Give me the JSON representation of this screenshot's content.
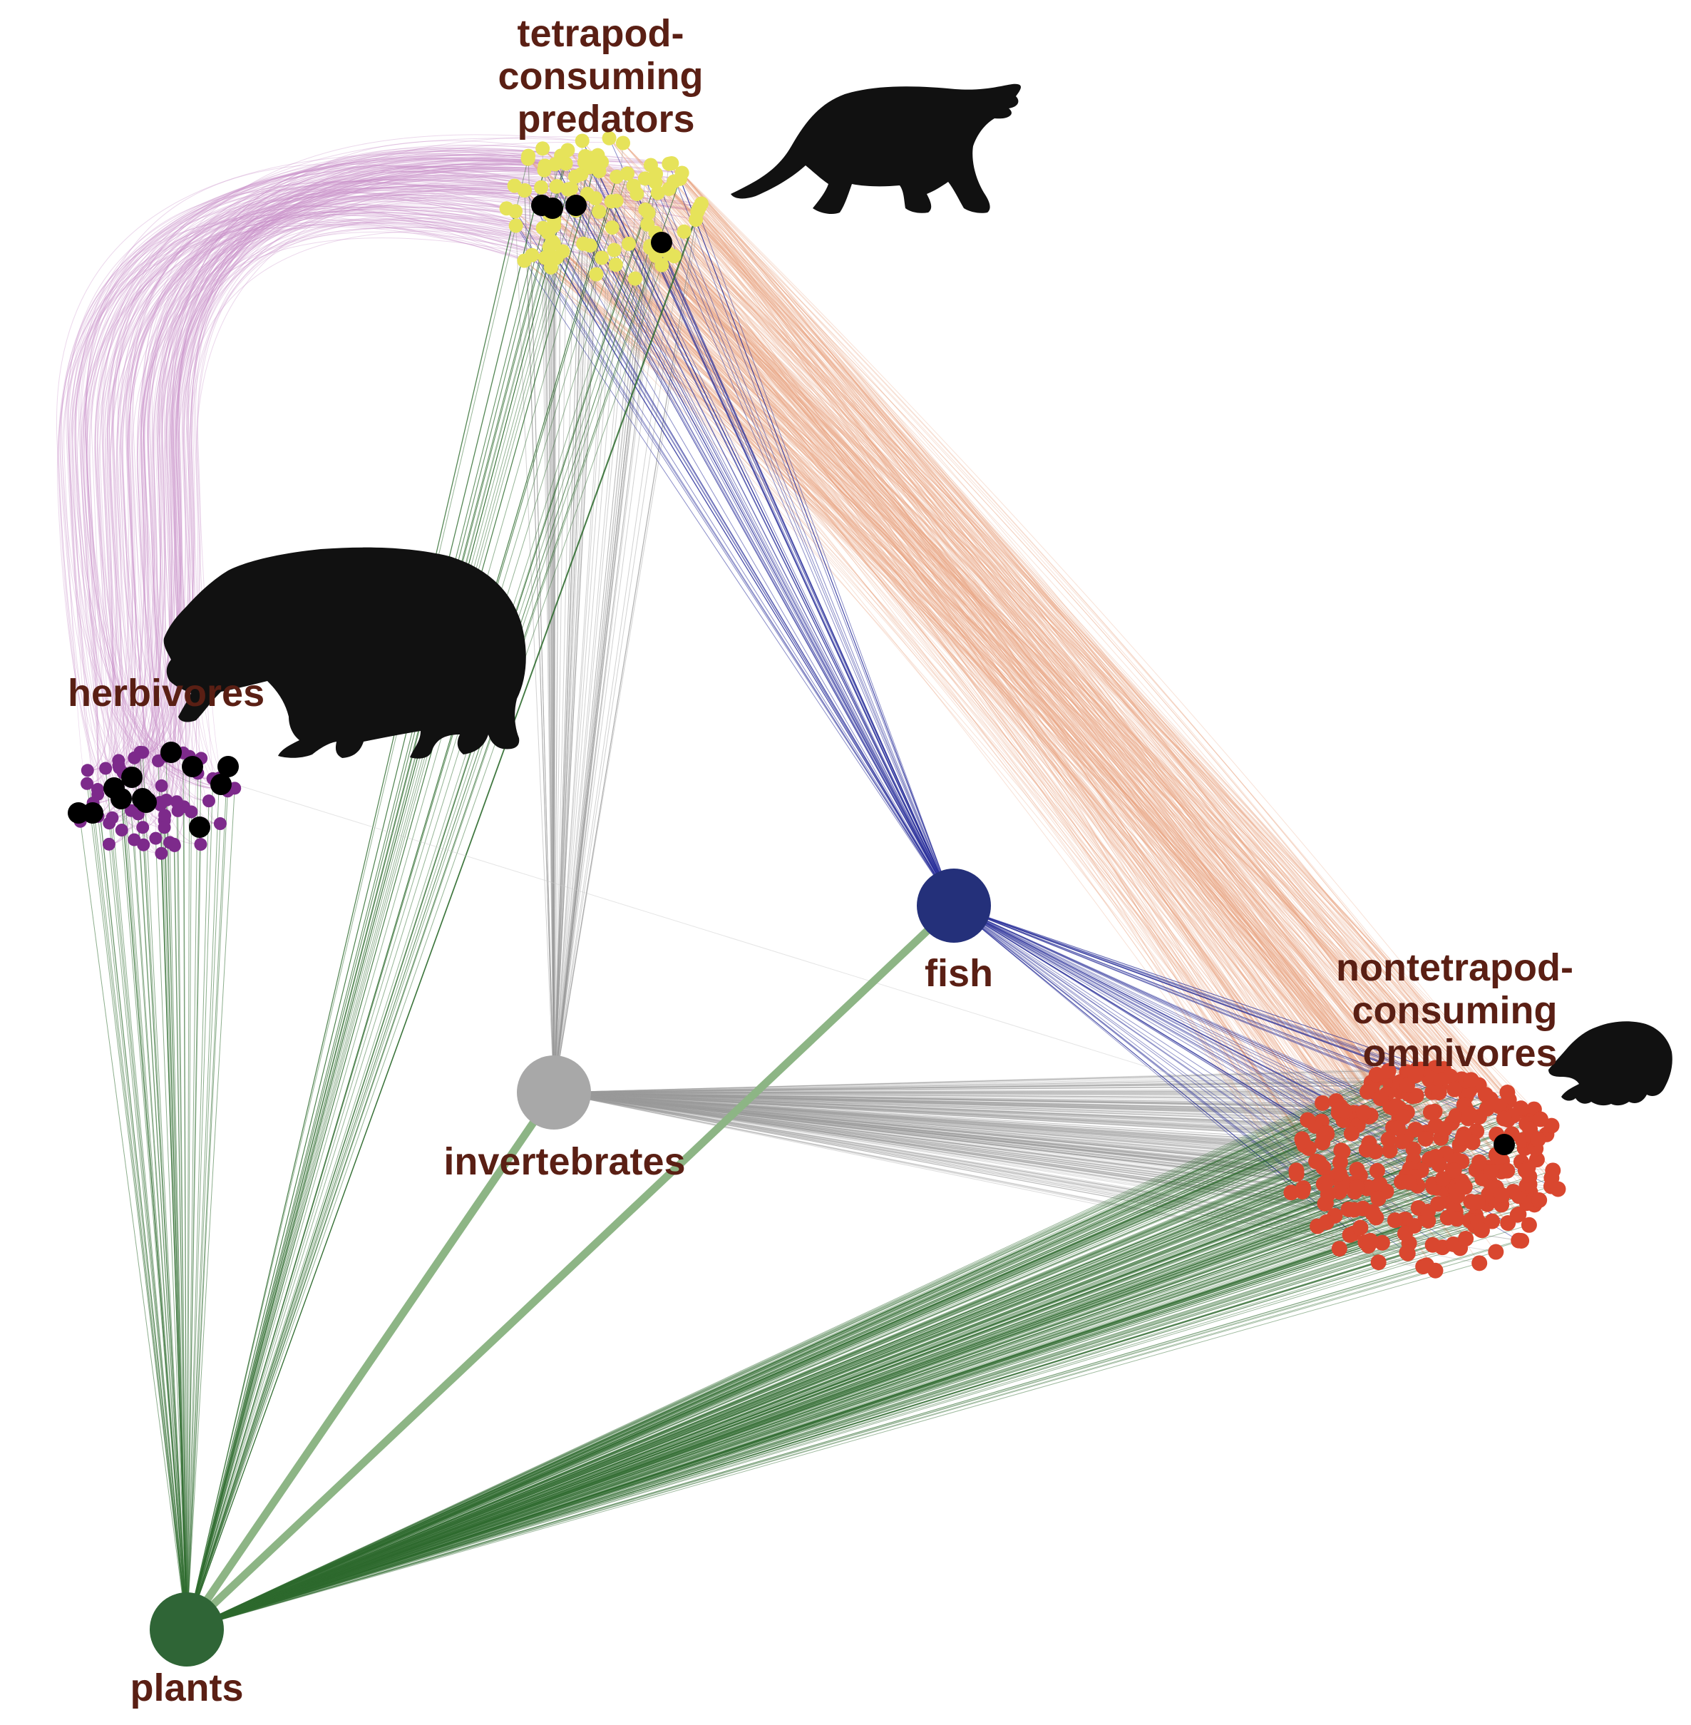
{
  "labels": {
    "predators": [
      "tetrapod-",
      "consuming",
      "predators"
    ],
    "herbivores": "herbivores",
    "fish": "fish",
    "invertebrates": "invertebrates",
    "omnivores": [
      "nontetrapod-",
      "consuming",
      "omnivores"
    ],
    "plants": "plants"
  },
  "colors": {
    "predators": "#e6e35a",
    "herbivores": "#7d2a8b",
    "omnivores": "#d9472f",
    "fish": "#24307a",
    "invertebrates": "#a8a8a8",
    "plants": "#2f6536",
    "highlight": "#000000",
    "edge_plants": "#2e6b2e",
    "edge_plants_thick": "#8db585",
    "edge_inverts": "#9a9a9a",
    "edge_fish": "#2a2f9a",
    "edge_pred_omni": "#e8a07a",
    "edge_pred_herb": "#c98ec9"
  },
  "silhouettes": [
    "carnivore-silhouette",
    "bear-silhouette",
    "shrew-silhouette"
  ]
}
